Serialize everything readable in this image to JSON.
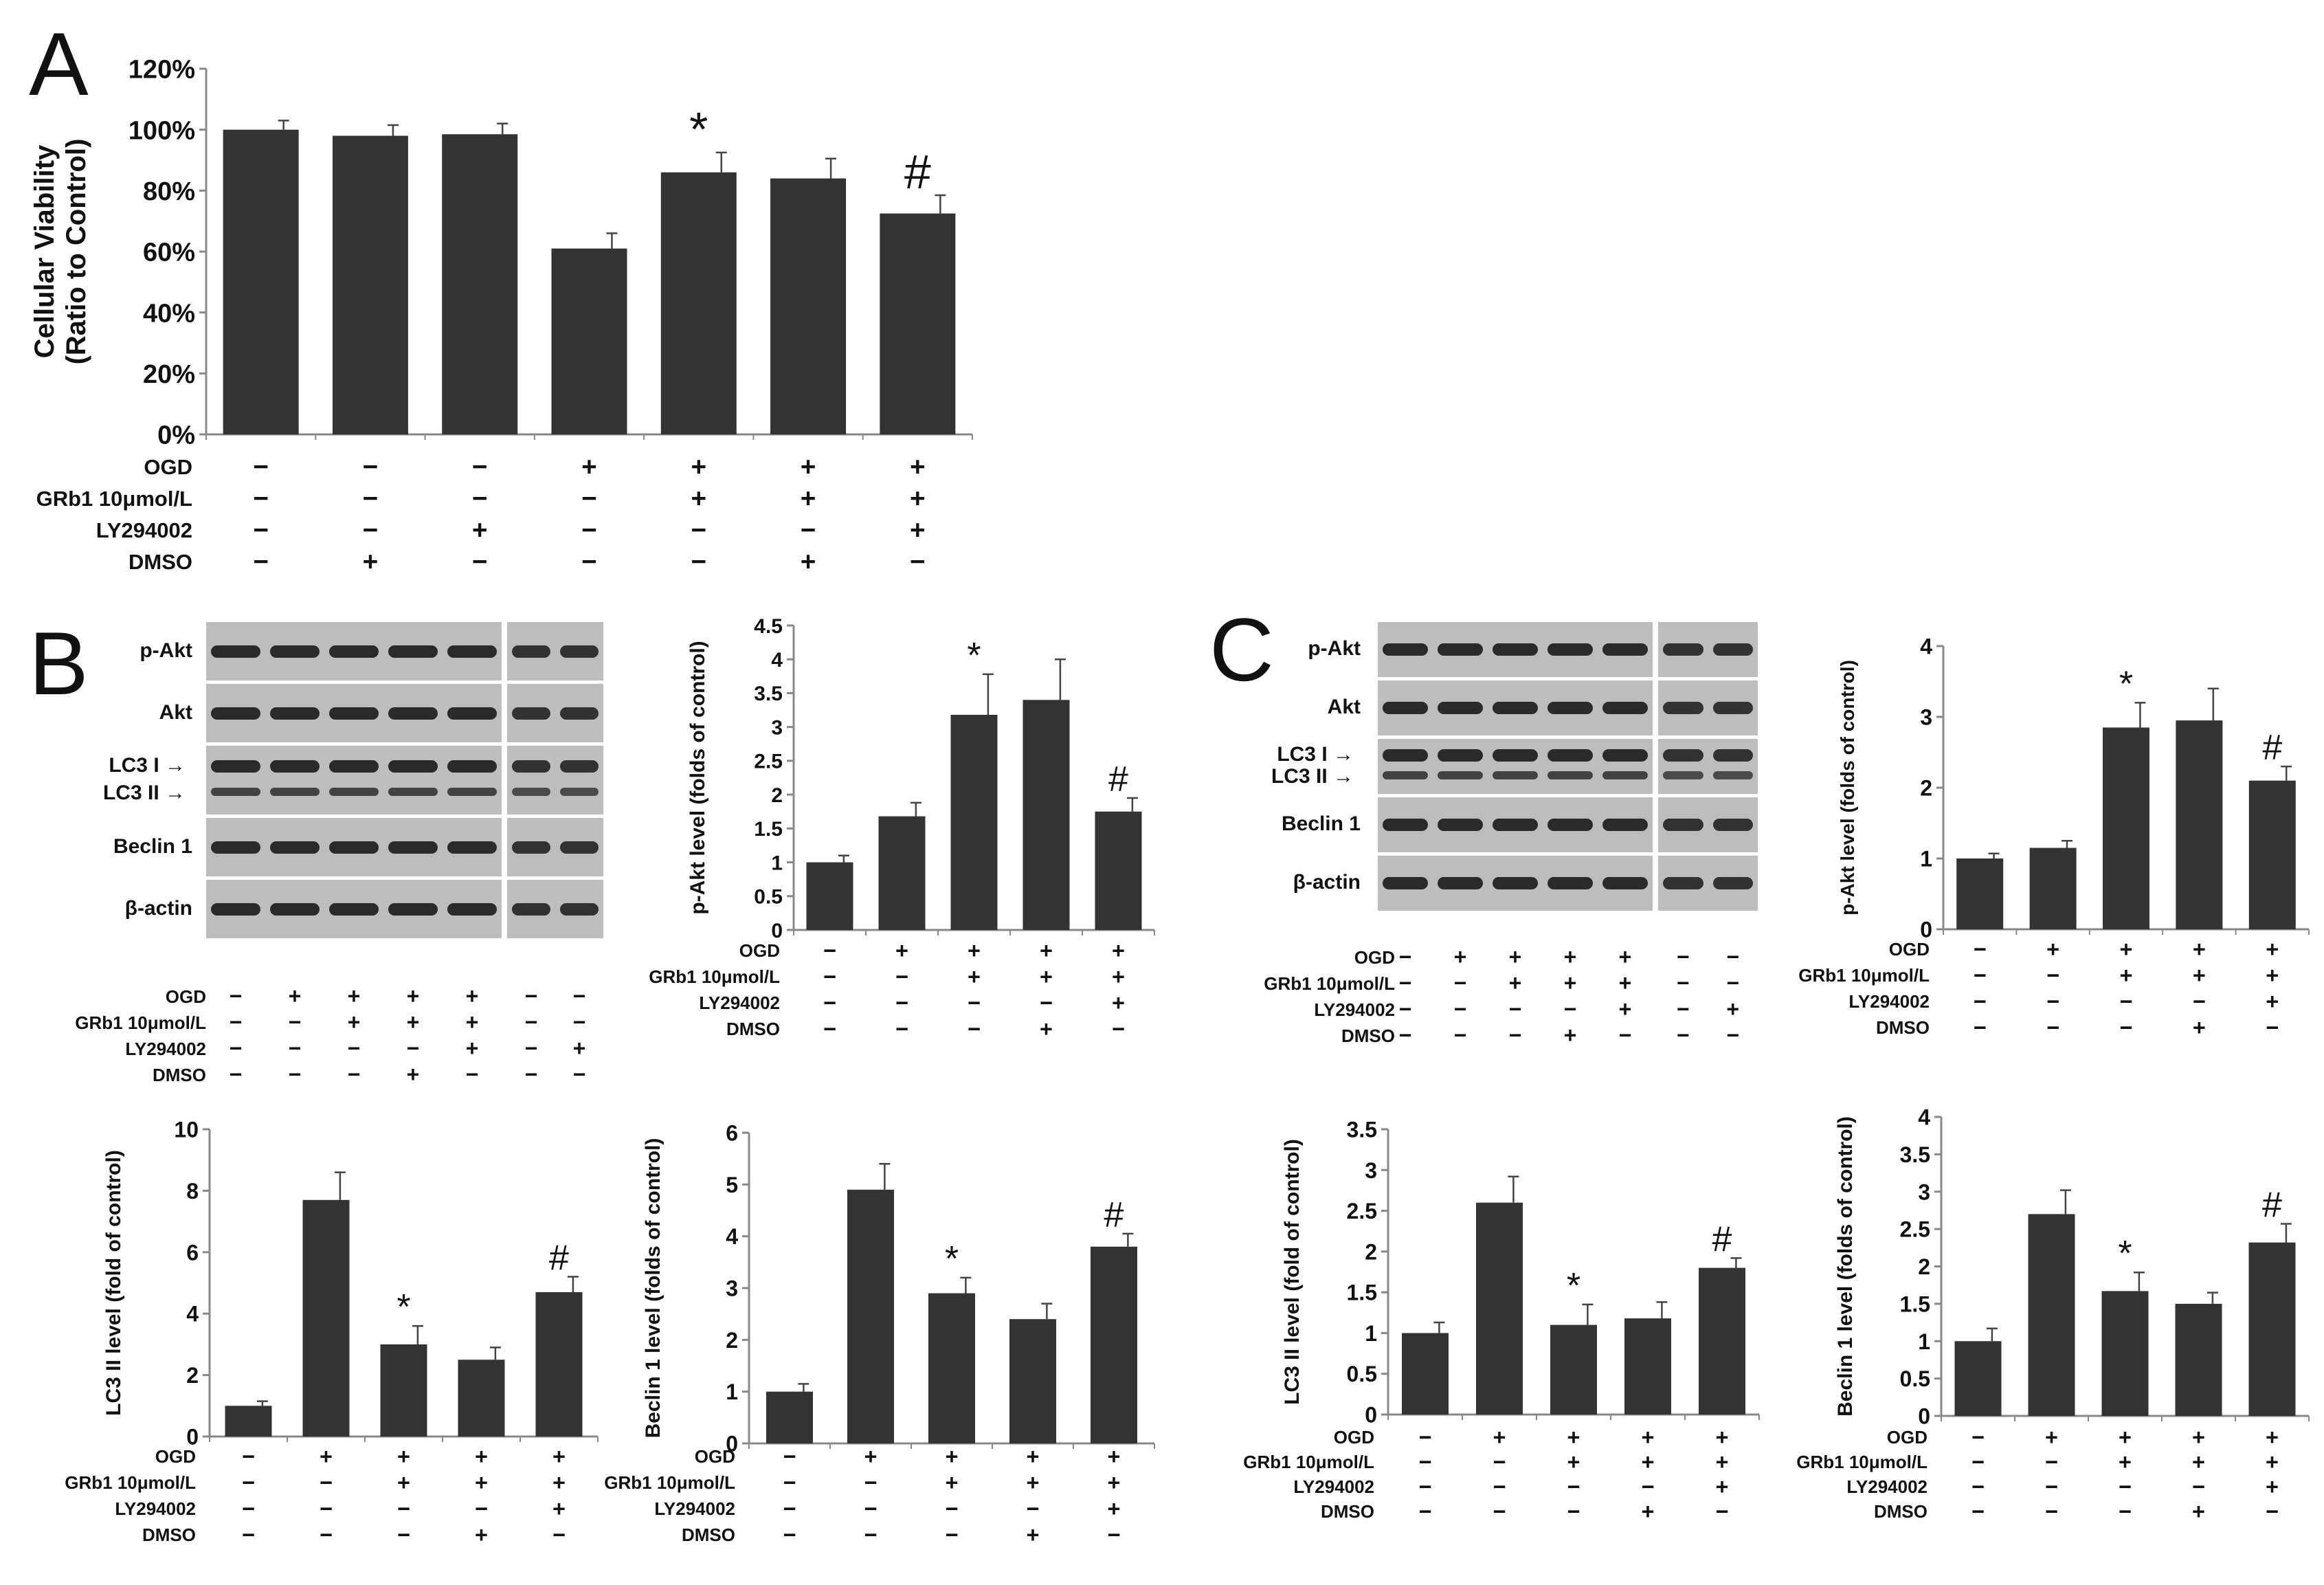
{
  "panels": {
    "a": "A",
    "b": "B",
    "c": "C"
  },
  "conditions": {
    "ogd": "OGD",
    "grb1": "GRb1 10μmol/L",
    "ly": "LY294002",
    "dmso": "DMSO"
  },
  "blot_labels": {
    "pakt": "p-Akt",
    "akt": "Akt",
    "lc3i": "LC3 I",
    "lc3ii": "LC3 II",
    "beclin": "Beclin 1",
    "actin": "β-actin"
  },
  "blot_b": {
    "conditions": [
      [
        "−",
        "+",
        "+",
        "+",
        "+",
        "−",
        "−"
      ],
      [
        "−",
        "−",
        "+",
        "+",
        "+",
        "−",
        "−"
      ],
      [
        "−",
        "−",
        "−",
        "−",
        "+",
        "−",
        "+"
      ],
      [
        "−",
        "−",
        "−",
        "+",
        "−",
        "−",
        "−"
      ]
    ]
  },
  "blot_c": {
    "conditions": [
      [
        "−",
        "+",
        "+",
        "+",
        "+",
        "−",
        "−"
      ],
      [
        "−",
        "−",
        "+",
        "+",
        "+",
        "−",
        "−"
      ],
      [
        "−",
        "−",
        "−",
        "−",
        "+",
        "−",
        "+"
      ],
      [
        "−",
        "−",
        "−",
        "+",
        "−",
        "−",
        "−"
      ]
    ]
  },
  "chart_data": [
    {
      "id": "A",
      "type": "bar",
      "ylabel": "Cellular Viability\n(Ratio to Control)",
      "ylim": [
        0,
        120
      ],
      "yticks": [
        "0%",
        "20%",
        "40%",
        "60%",
        "80%",
        "100%",
        "120%"
      ],
      "values": [
        100,
        98,
        98.5,
        61,
        86,
        84,
        72.5
      ],
      "errors": [
        3,
        3.5,
        3.5,
        5,
        6.5,
        6.5,
        6
      ],
      "annotations": [
        "",
        "",
        "",
        "",
        "*",
        "",
        "#"
      ],
      "conditions": [
        [
          "−",
          "−",
          "−",
          "+",
          "+",
          "+",
          "+"
        ],
        [
          "−",
          "−",
          "−",
          "−",
          "+",
          "+",
          "+"
        ],
        [
          "−",
          "−",
          "+",
          "−",
          "−",
          "−",
          "+"
        ],
        [
          "−",
          "+",
          "−",
          "−",
          "−",
          "+",
          "−"
        ]
      ]
    },
    {
      "id": "B-pAkt",
      "type": "bar",
      "ylabel": "p-Akt level (folds of control)",
      "ylim": [
        0,
        4.5
      ],
      "yticks": [
        "0",
        "0.5",
        "1",
        "1.5",
        "2",
        "2.5",
        "3",
        "3.5",
        "4",
        "4.5"
      ],
      "values": [
        1.0,
        1.68,
        3.18,
        3.4,
        1.75
      ],
      "errors": [
        0.1,
        0.2,
        0.6,
        0.6,
        0.2
      ],
      "annotations": [
        "",
        "",
        "*",
        "",
        "#"
      ],
      "conditions": [
        [
          "−",
          "+",
          "+",
          "+",
          "+"
        ],
        [
          "−",
          "−",
          "+",
          "+",
          "+"
        ],
        [
          "−",
          "−",
          "−",
          "−",
          "+"
        ],
        [
          "−",
          "−",
          "−",
          "+",
          "−"
        ]
      ]
    },
    {
      "id": "B-LC3",
      "type": "bar",
      "ylabel": "LC3 II level (fold of control)",
      "ylim": [
        0,
        10
      ],
      "yticks": [
        "0",
        "2",
        "4",
        "6",
        "8",
        "10"
      ],
      "values": [
        1.0,
        7.7,
        3.0,
        2.5,
        4.7
      ],
      "errors": [
        0.15,
        0.9,
        0.6,
        0.4,
        0.5
      ],
      "annotations": [
        "",
        "",
        "*",
        "",
        "#"
      ],
      "conditions": [
        [
          "−",
          "+",
          "+",
          "+",
          "+"
        ],
        [
          "−",
          "−",
          "+",
          "+",
          "+"
        ],
        [
          "−",
          "−",
          "−",
          "−",
          "+"
        ],
        [
          "−",
          "−",
          "−",
          "+",
          "−"
        ]
      ]
    },
    {
      "id": "B-Beclin",
      "type": "bar",
      "ylabel": "Beclin 1 level (folds of control)",
      "ylim": [
        0,
        6
      ],
      "yticks": [
        "0",
        "1",
        "2",
        "3",
        "4",
        "5",
        "6"
      ],
      "values": [
        1.0,
        4.9,
        2.9,
        2.4,
        3.8
      ],
      "errors": [
        0.15,
        0.5,
        0.3,
        0.3,
        0.25
      ],
      "annotations": [
        "",
        "",
        "*",
        "",
        "#"
      ],
      "conditions": [
        [
          "−",
          "+",
          "+",
          "+",
          "+"
        ],
        [
          "−",
          "−",
          "+",
          "+",
          "+"
        ],
        [
          "−",
          "−",
          "−",
          "−",
          "+"
        ],
        [
          "−",
          "−",
          "−",
          "+",
          "−"
        ]
      ]
    },
    {
      "id": "C-pAkt",
      "type": "bar",
      "ylabel": "p-Akt level (folds of control)",
      "ylim": [
        0,
        4
      ],
      "yticks": [
        "0",
        "1",
        "2",
        "3",
        "4"
      ],
      "values": [
        1.0,
        1.15,
        2.85,
        2.95,
        2.1
      ],
      "errors": [
        0.07,
        0.1,
        0.35,
        0.45,
        0.2
      ],
      "annotations": [
        "",
        "",
        "*",
        "",
        "#"
      ],
      "conditions": [
        [
          "−",
          "+",
          "+",
          "+",
          "+"
        ],
        [
          "−",
          "−",
          "+",
          "+",
          "+"
        ],
        [
          "−",
          "−",
          "−",
          "−",
          "+"
        ],
        [
          "−",
          "−",
          "−",
          "+",
          "−"
        ]
      ]
    },
    {
      "id": "C-LC3",
      "type": "bar",
      "ylabel": "LC3 II level (fold of control)",
      "ylim": [
        0,
        3.5
      ],
      "yticks": [
        "0",
        "0.5",
        "1",
        "1.5",
        "2",
        "2.5",
        "3",
        "3.5"
      ],
      "values": [
        1.0,
        2.6,
        1.1,
        1.18,
        1.8
      ],
      "errors": [
        0.13,
        0.32,
        0.25,
        0.2,
        0.12
      ],
      "annotations": [
        "",
        "",
        "*",
        "",
        "#"
      ],
      "conditions": [
        [
          "−",
          "+",
          "+",
          "+",
          "+"
        ],
        [
          "−",
          "−",
          "+",
          "+",
          "+"
        ],
        [
          "−",
          "−",
          "−",
          "−",
          "+"
        ],
        [
          "−",
          "−",
          "−",
          "+",
          "−"
        ]
      ]
    },
    {
      "id": "C-Beclin",
      "type": "bar",
      "ylabel": "Beclin 1 level (folds of control)",
      "ylim": [
        0,
        4
      ],
      "yticks": [
        "0",
        "0.5",
        "1",
        "1.5",
        "2",
        "2.5",
        "3",
        "3.5",
        "4"
      ],
      "values": [
        1.0,
        2.7,
        1.67,
        1.5,
        2.32
      ],
      "errors": [
        0.17,
        0.32,
        0.25,
        0.15,
        0.25
      ],
      "annotations": [
        "",
        "",
        "*",
        "",
        "#"
      ],
      "conditions": [
        [
          "−",
          "+",
          "+",
          "+",
          "+"
        ],
        [
          "−",
          "−",
          "+",
          "+",
          "+"
        ],
        [
          "−",
          "−",
          "−",
          "−",
          "+"
        ],
        [
          "−",
          "−",
          "−",
          "+",
          "−"
        ]
      ]
    }
  ]
}
